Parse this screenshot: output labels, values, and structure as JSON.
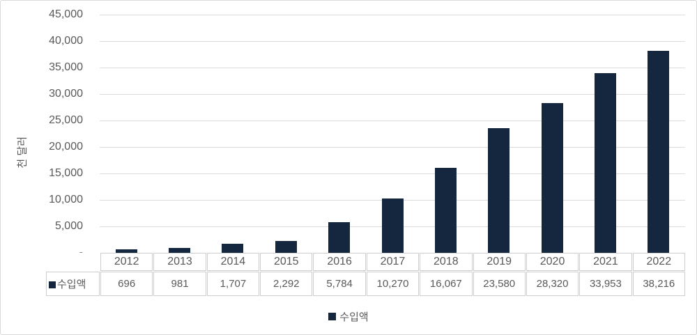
{
  "chart_data": {
    "type": "bar",
    "title": "",
    "categories": [
      "2012",
      "2013",
      "2014",
      "2015",
      "2016",
      "2017",
      "2018",
      "2019",
      "2020",
      "2021",
      "2022"
    ],
    "series": [
      {
        "name": "수입액",
        "values": [
          696,
          981,
          1707,
          2292,
          5784,
          10270,
          16067,
          23580,
          28320,
          33953,
          38216
        ]
      }
    ],
    "values_formatted": [
      "696",
      "981",
      "1,707",
      "2,292",
      "5,784",
      "10,270",
      "16,067",
      "23,580",
      "28,320",
      "33,953",
      "38,216"
    ],
    "xlabel": "",
    "ylabel": "천 달러",
    "ylim": [
      0,
      45000
    ],
    "ytick_step": 5000,
    "grid": true,
    "legend_position": "bottom",
    "has_data_table": true
  },
  "y_axis": {
    "title": "천 달러",
    "ticks": [
      {
        "v": 45000,
        "label": "45,000"
      },
      {
        "v": 40000,
        "label": "40,000"
      },
      {
        "v": 35000,
        "label": "35,000"
      },
      {
        "v": 30000,
        "label": "30,000"
      },
      {
        "v": 25000,
        "label": "25,000"
      },
      {
        "v": 20000,
        "label": "20,000"
      },
      {
        "v": 15000,
        "label": "15,000"
      },
      {
        "v": 10000,
        "label": "10,000"
      },
      {
        "v": 5000,
        "label": "5,000"
      },
      {
        "v": 0,
        "label": "-"
      }
    ]
  },
  "data_table": {
    "row_header": "수입액",
    "columns": [
      "2012",
      "2013",
      "2014",
      "2015",
      "2016",
      "2017",
      "2018",
      "2019",
      "2020",
      "2021",
      "2022"
    ],
    "values": [
      "696",
      "981",
      "1,707",
      "2,292",
      "5,784",
      "10,270",
      "16,067",
      "23,580",
      "28,320",
      "33,953",
      "38,216"
    ]
  },
  "legend": {
    "label": "수입액"
  },
  "colors": {
    "bar": "#14273F",
    "gridline": "#DBDBDB",
    "text": "#595959",
    "table_border": "#CDCDCD",
    "frame_border": "#D9D9D9",
    "background": "#FFFFFF"
  }
}
